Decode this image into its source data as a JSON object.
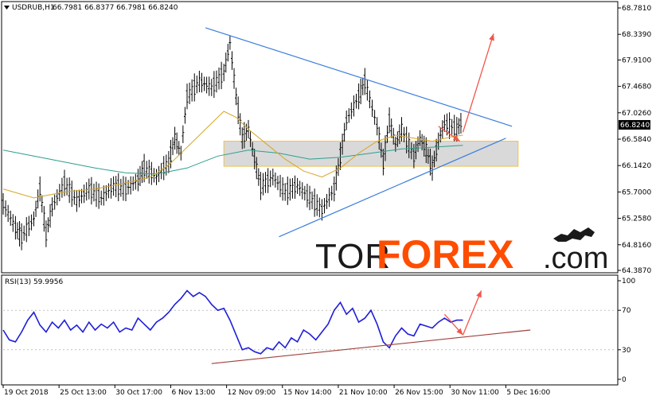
{
  "header": {
    "symbol": "USDRUB,H1",
    "ohlc": "66.7981 66.8377 66.7981 66.8240"
  },
  "rsi_header": "RSI(13) 59.9956",
  "current_price": "66.8240",
  "watermark": {
    "part1": "TOR",
    "part2": "FOREX",
    "part3": ".com"
  },
  "colors": {
    "candles": "#000000",
    "ma_fast": "#d7a526",
    "ma_slow": "#2e9e8f",
    "trendline": "#3b7ddd",
    "rsi_line": "#1f1fd8",
    "rsi_trend": "#a0413c",
    "forecast_arrow": "#f2554a",
    "zone_fill": "#d2d2d2",
    "zone_border": "#f0c050"
  },
  "chart_data": [
    {
      "type": "line",
      "name": "price",
      "y_axis_ticks": [
        "68.7810",
        "68.3390",
        "67.9100",
        "67.4680",
        "67.0260",
        "66.5840",
        "66.1420",
        "65.7000",
        "65.2580",
        "64.8160",
        "64.3870"
      ],
      "x_axis_ticks": [
        "19 Oct 2018",
        "25 Oct 13:00",
        "30 Oct 17:00",
        "6 Nov 13:00",
        "12 Nov 09:00",
        "15 Nov 14:00",
        "21 Nov 10:00",
        "26 Nov 15:00",
        "30 Nov 11:00",
        "5 Dec 16:00"
      ],
      "ylim": [
        64.387,
        68.781
      ],
      "x_range": [
        0,
        100
      ],
      "price_path": [
        [
          0,
          65.5
        ],
        [
          2,
          65.1
        ],
        [
          3,
          64.95
        ],
        [
          5,
          65.25
        ],
        [
          6,
          65.75
        ],
        [
          7,
          65.0
        ],
        [
          8,
          65.45
        ],
        [
          10,
          65.85
        ],
        [
          12,
          65.55
        ],
        [
          14,
          65.75
        ],
        [
          16,
          65.6
        ],
        [
          18,
          65.8
        ],
        [
          20,
          65.75
        ],
        [
          22,
          65.9
        ],
        [
          23,
          66.1
        ],
        [
          25,
          65.95
        ],
        [
          27,
          66.2
        ],
        [
          28,
          66.6
        ],
        [
          29,
          66.35
        ],
        [
          30,
          67.3
        ],
        [
          32,
          67.55
        ],
        [
          34,
          67.45
        ],
        [
          36,
          67.7
        ],
        [
          37,
          68.2
        ],
        [
          38,
          67.3
        ],
        [
          39,
          66.6
        ],
        [
          40,
          66.75
        ],
        [
          41,
          66.25
        ],
        [
          42,
          65.8
        ],
        [
          44,
          65.95
        ],
        [
          46,
          65.7
        ],
        [
          48,
          65.8
        ],
        [
          50,
          65.6
        ],
        [
          52,
          65.4
        ],
        [
          54,
          65.75
        ],
        [
          55,
          66.3
        ],
        [
          56,
          66.9
        ],
        [
          58,
          67.3
        ],
        [
          59,
          67.55
        ],
        [
          61,
          66.8
        ],
        [
          62,
          66.2
        ],
        [
          63,
          66.9
        ],
        [
          64,
          66.5
        ],
        [
          65,
          66.75
        ],
        [
          67,
          66.3
        ],
        [
          68,
          66.6
        ],
        [
          69,
          66.4
        ],
        [
          70,
          66.1
        ],
        [
          71,
          66.55
        ],
        [
          72,
          66.85
        ],
        [
          74,
          66.75
        ],
        [
          75,
          66.9
        ]
      ],
      "ma_fast_path": [
        [
          0,
          65.75
        ],
        [
          5,
          65.6
        ],
        [
          10,
          65.7
        ],
        [
          15,
          65.75
        ],
        [
          20,
          65.85
        ],
        [
          24,
          65.95
        ],
        [
          27,
          66.15
        ],
        [
          30,
          66.45
        ],
        [
          33,
          66.75
        ],
        [
          36,
          67.05
        ],
        [
          38,
          66.95
        ],
        [
          40,
          66.75
        ],
        [
          43,
          66.5
        ],
        [
          46,
          66.25
        ],
        [
          49,
          66.05
        ],
        [
          52,
          65.95
        ],
        [
          55,
          66.1
        ],
        [
          58,
          66.35
        ],
        [
          61,
          66.55
        ],
        [
          64,
          66.65
        ],
        [
          67,
          66.6
        ],
        [
          70,
          66.55
        ],
        [
          73,
          66.62
        ],
        [
          75,
          66.65
        ]
      ],
      "ma_slow_path": [
        [
          0,
          66.4
        ],
        [
          5,
          66.3
        ],
        [
          10,
          66.2
        ],
        [
          15,
          66.1
        ],
        [
          20,
          66.02
        ],
        [
          25,
          66.0
        ],
        [
          30,
          66.1
        ],
        [
          35,
          66.3
        ],
        [
          40,
          66.4
        ],
        [
          45,
          66.35
        ],
        [
          50,
          66.25
        ],
        [
          55,
          66.28
        ],
        [
          60,
          66.35
        ],
        [
          65,
          66.42
        ],
        [
          70,
          66.45
        ],
        [
          75,
          66.48
        ]
      ],
      "resistance_line": [
        [
          33,
          68.45
        ],
        [
          83,
          66.8
        ]
      ],
      "support_line": [
        [
          45,
          64.95
        ],
        [
          82,
          66.6
        ]
      ],
      "zone": [
        [
          36,
          66.55
        ],
        [
          84,
          66.13
        ]
      ],
      "forecast_arrows": [
        [
          [
            71,
            66.8
          ],
          [
            74.5,
            66.55
          ]
        ],
        [
          [
            75,
            66.7
          ],
          [
            80,
            68.35
          ]
        ]
      ]
    },
    {
      "type": "line",
      "name": "RSI(13)",
      "y_axis_ticks": [
        "100",
        "70",
        "30",
        "0"
      ],
      "ylim": [
        0,
        100
      ],
      "levels": [
        70,
        30
      ],
      "x_range": [
        0,
        100
      ],
      "path": [
        [
          0,
          50
        ],
        [
          1,
          40
        ],
        [
          2,
          38
        ],
        [
          3,
          48
        ],
        [
          4,
          60
        ],
        [
          5,
          68
        ],
        [
          6,
          55
        ],
        [
          7,
          48
        ],
        [
          8,
          58
        ],
        [
          9,
          52
        ],
        [
          10,
          60
        ],
        [
          11,
          50
        ],
        [
          12,
          55
        ],
        [
          13,
          48
        ],
        [
          14,
          58
        ],
        [
          15,
          50
        ],
        [
          16,
          56
        ],
        [
          17,
          52
        ],
        [
          18,
          58
        ],
        [
          19,
          48
        ],
        [
          20,
          52
        ],
        [
          21,
          50
        ],
        [
          22,
          62
        ],
        [
          23,
          56
        ],
        [
          24,
          50
        ],
        [
          25,
          58
        ],
        [
          26,
          62
        ],
        [
          27,
          68
        ],
        [
          28,
          76
        ],
        [
          29,
          82
        ],
        [
          30,
          90
        ],
        [
          31,
          84
        ],
        [
          32,
          88
        ],
        [
          33,
          84
        ],
        [
          34,
          76
        ],
        [
          35,
          70
        ],
        [
          36,
          72
        ],
        [
          37,
          60
        ],
        [
          38,
          45
        ],
        [
          39,
          30
        ],
        [
          40,
          32
        ],
        [
          41,
          28
        ],
        [
          42,
          26
        ],
        [
          43,
          32
        ],
        [
          44,
          30
        ],
        [
          45,
          38
        ],
        [
          46,
          32
        ],
        [
          47,
          42
        ],
        [
          48,
          38
        ],
        [
          49,
          50
        ],
        [
          50,
          46
        ],
        [
          51,
          40
        ],
        [
          52,
          48
        ],
        [
          53,
          56
        ],
        [
          54,
          70
        ],
        [
          55,
          78
        ],
        [
          56,
          66
        ],
        [
          57,
          72
        ],
        [
          58,
          58
        ],
        [
          59,
          62
        ],
        [
          60,
          70
        ],
        [
          61,
          56
        ],
        [
          62,
          38
        ],
        [
          63,
          32
        ],
        [
          64,
          44
        ],
        [
          65,
          52
        ],
        [
          66,
          46
        ],
        [
          67,
          44
        ],
        [
          68,
          56
        ],
        [
          69,
          54
        ],
        [
          70,
          52
        ],
        [
          71,
          58
        ],
        [
          72,
          62
        ],
        [
          73,
          58
        ],
        [
          74,
          60
        ],
        [
          75,
          60
        ]
      ],
      "trend_line": [
        [
          34,
          16
        ],
        [
          86,
          50
        ]
      ],
      "forecast_arrows": [
        [
          [
            72,
            66
          ],
          [
            75,
            45
          ]
        ],
        [
          [
            75,
            45
          ],
          [
            78,
            90
          ]
        ]
      ]
    }
  ]
}
